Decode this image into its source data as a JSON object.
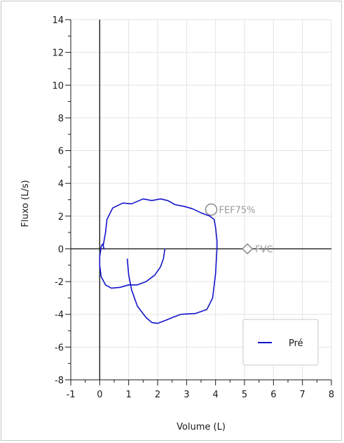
{
  "chart_data": {
    "type": "line",
    "xlabel": "Volume (L)",
    "ylabel": "Fluxo (L/s)",
    "xlim": [
      -1,
      8
    ],
    "ylim": [
      -8,
      14
    ],
    "grid": true,
    "legend_position": "bottom-right",
    "x_ticks": [
      -1,
      0,
      1,
      2,
      3,
      4,
      5,
      6,
      7,
      8
    ],
    "y_ticks": [
      -8,
      -6,
      -4,
      -2,
      0,
      2,
      4,
      6,
      8,
      10,
      12,
      14
    ],
    "series": [
      {
        "name": "Pré",
        "color": "#1414cc",
        "points": [
          [
            2.25,
            0.0
          ],
          [
            2.2,
            -0.6
          ],
          [
            2.1,
            -1.1
          ],
          [
            1.9,
            -1.6
          ],
          [
            1.6,
            -2.0
          ],
          [
            1.3,
            -2.2
          ],
          [
            1.0,
            -2.2
          ],
          [
            0.7,
            -2.35
          ],
          [
            0.4,
            -2.4
          ],
          [
            0.2,
            -2.2
          ],
          [
            0.05,
            -1.7
          ],
          [
            0.0,
            -1.0
          ],
          [
            0.0,
            -0.5
          ],
          [
            0.05,
            0.15
          ],
          [
            0.1,
            0.3
          ],
          [
            0.15,
            0.0
          ],
          [
            0.12,
            0.2
          ],
          [
            0.2,
            1.0
          ],
          [
            0.25,
            1.8
          ],
          [
            0.45,
            2.5
          ],
          [
            0.8,
            2.8
          ],
          [
            1.1,
            2.75
          ],
          [
            1.3,
            2.9
          ],
          [
            1.5,
            3.05
          ],
          [
            1.8,
            2.95
          ],
          [
            2.1,
            3.05
          ],
          [
            2.35,
            2.95
          ],
          [
            2.6,
            2.7
          ],
          [
            2.9,
            2.6
          ],
          [
            3.2,
            2.45
          ],
          [
            3.5,
            2.2
          ],
          [
            3.8,
            2.0
          ],
          [
            3.95,
            1.8
          ],
          [
            4.0,
            1.3
          ],
          [
            4.05,
            0.5
          ],
          [
            4.05,
            0.0
          ],
          [
            4.0,
            -1.5
          ],
          [
            3.9,
            -3.0
          ],
          [
            3.7,
            -3.7
          ],
          [
            3.3,
            -3.95
          ],
          [
            2.8,
            -4.0
          ],
          [
            2.5,
            -4.2
          ],
          [
            2.3,
            -4.35
          ],
          [
            2.0,
            -4.55
          ],
          [
            1.8,
            -4.5
          ],
          [
            1.6,
            -4.2
          ],
          [
            1.3,
            -3.5
          ],
          [
            1.1,
            -2.5
          ],
          [
            1.0,
            -1.6
          ],
          [
            0.95,
            -0.6
          ]
        ]
      }
    ],
    "annotations": [
      {
        "label": "FEF75%",
        "x": 3.85,
        "y": 2.4,
        "marker": "circle"
      },
      {
        "label": "FVC",
        "x": 5.1,
        "y": 0.0,
        "marker": "diamond"
      }
    ]
  }
}
